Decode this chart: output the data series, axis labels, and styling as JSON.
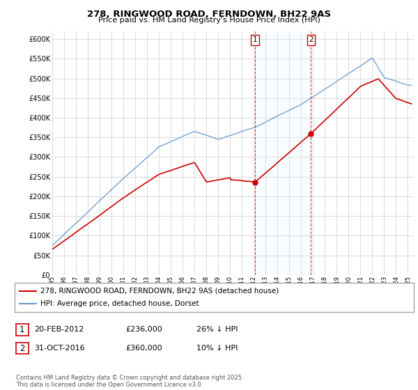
{
  "title": "278, RINGWOOD ROAD, FERNDOWN, BH22 9AS",
  "subtitle": "Price paid vs. HM Land Registry's House Price Index (HPI)",
  "legend_label_red": "278, RINGWOOD ROAD, FERNDOWN, BH22 9AS (detached house)",
  "legend_label_blue": "HPI: Average price, detached house, Dorset",
  "red_color": "#cc0000",
  "blue_color": "#6699cc",
  "blue_fill_color": "#ddeeff",
  "vline1_x": 2012.12,
  "vline2_x": 2016.83,
  "sale1_y": 236000,
  "sale2_y": 360000,
  "table_rows": [
    [
      "1",
      "20-FEB-2012",
      "£236,000",
      "26% ↓ HPI"
    ],
    [
      "2",
      "31-OCT-2016",
      "£360,000",
      "10% ↓ HPI"
    ]
  ],
  "footnote": "Contains HM Land Registry data © Crown copyright and database right 2025.\nThis data is licensed under the Open Government Licence v3.0.",
  "ylim": [
    0,
    620000
  ],
  "yticks": [
    0,
    50000,
    100000,
    150000,
    200000,
    250000,
    300000,
    350000,
    400000,
    450000,
    500000,
    550000,
    600000
  ],
  "xlim_start": 1995,
  "xlim_end": 2025.5,
  "background_color": "#ffffff",
  "grid_color": "#cccccc"
}
